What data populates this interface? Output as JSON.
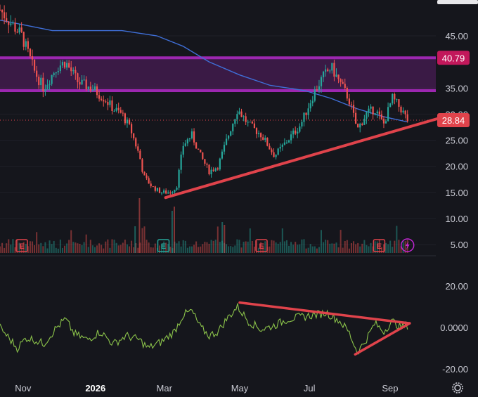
{
  "chart_data": [
    {
      "type": "candlestick",
      "panel": "price",
      "y_axis_ticks": [
        "45.00",
        "35.00",
        "30.00",
        "25.00",
        "20.00",
        "15.00",
        "10.00",
        "5.00"
      ],
      "y_tick_values": [
        45,
        35,
        30,
        25,
        20,
        15,
        10,
        5
      ],
      "ylim": [
        3.0,
        52.0
      ],
      "x_axis_labels": [
        "Nov",
        "2026",
        "Mar",
        "May",
        "Jul",
        "Sep"
      ],
      "price_tags": [
        {
          "label": "40.79",
          "value": 40.79,
          "color": "#c2185b"
        },
        {
          "label": "28.84",
          "value": 28.84,
          "color": "#e0434b"
        }
      ],
      "resistance_zone": {
        "low": 34.5,
        "high": 40.79,
        "color": "#9c27b0"
      },
      "current_price_line": 28.84,
      "close_path": [
        {
          "t": 0.0,
          "p": 50
        },
        {
          "t": 0.05,
          "p": 45
        },
        {
          "t": 0.08,
          "p": 38
        },
        {
          "t": 0.1,
          "p": 35
        },
        {
          "t": 0.13,
          "p": 39
        },
        {
          "t": 0.15,
          "p": 40
        },
        {
          "t": 0.18,
          "p": 36
        },
        {
          "t": 0.21,
          "p": 35
        },
        {
          "t": 0.24,
          "p": 33
        },
        {
          "t": 0.26,
          "p": 31
        },
        {
          "t": 0.28,
          "p": 30
        },
        {
          "t": 0.3,
          "p": 27
        },
        {
          "t": 0.32,
          "p": 22
        },
        {
          "t": 0.33,
          "p": 18
        },
        {
          "t": 0.35,
          "p": 16
        },
        {
          "t": 0.37,
          "p": 15
        },
        {
          "t": 0.39,
          "p": 15
        },
        {
          "t": 0.405,
          "p": 16
        },
        {
          "t": 0.42,
          "p": 24
        },
        {
          "t": 0.44,
          "p": 26
        },
        {
          "t": 0.46,
          "p": 22
        },
        {
          "t": 0.48,
          "p": 19
        },
        {
          "t": 0.5,
          "p": 20
        },
        {
          "t": 0.52,
          "p": 25
        },
        {
          "t": 0.545,
          "p": 31
        },
        {
          "t": 0.57,
          "p": 28
        },
        {
          "t": 0.6,
          "p": 26
        },
        {
          "t": 0.63,
          "p": 22
        },
        {
          "t": 0.66,
          "p": 25
        },
        {
          "t": 0.69,
          "p": 28
        },
        {
          "t": 0.72,
          "p": 34
        },
        {
          "t": 0.74,
          "p": 37
        },
        {
          "t": 0.76,
          "p": 39
        },
        {
          "t": 0.78,
          "p": 36
        },
        {
          "t": 0.8,
          "p": 33
        },
        {
          "t": 0.82,
          "p": 27
        },
        {
          "t": 0.84,
          "p": 30
        },
        {
          "t": 0.86,
          "p": 31
        },
        {
          "t": 0.88,
          "p": 28
        },
        {
          "t": 0.9,
          "p": 33
        },
        {
          "t": 0.92,
          "p": 31
        },
        {
          "t": 0.935,
          "p": 28.84
        }
      ],
      "moving_average": [
        {
          "t": 0.0,
          "p": 48
        },
        {
          "t": 0.06,
          "p": 47
        },
        {
          "t": 0.12,
          "p": 46
        },
        {
          "t": 0.2,
          "p": 46
        },
        {
          "t": 0.28,
          "p": 46
        },
        {
          "t": 0.36,
          "p": 45
        },
        {
          "t": 0.42,
          "p": 43
        },
        {
          "t": 0.48,
          "p": 40
        },
        {
          "t": 0.55,
          "p": 37.5
        },
        {
          "t": 0.62,
          "p": 35.5
        },
        {
          "t": 0.7,
          "p": 34.5
        },
        {
          "t": 0.76,
          "p": 33
        },
        {
          "t": 0.82,
          "p": 31
        },
        {
          "t": 0.88,
          "p": 29.5
        },
        {
          "t": 0.935,
          "p": 28.5
        }
      ],
      "trendline": [
        {
          "t": 0.38,
          "p": 14
        },
        {
          "t": 1.04,
          "p": 30
        }
      ],
      "earnings_markers": [
        {
          "t": 0.05,
          "label": "E",
          "color": "#e0434b"
        },
        {
          "t": 0.375,
          "label": "E",
          "color": "#26a69a"
        },
        {
          "t": 0.6,
          "label": "E",
          "color": "#e0434b"
        },
        {
          "t": 0.87,
          "label": "E",
          "color": "#e0434b"
        }
      ],
      "dividend_marker": {
        "t": 0.935,
        "icon": "lightning-icon",
        "color": "#c026d3"
      }
    },
    {
      "type": "line",
      "panel": "oscillator",
      "y_axis_ticks": [
        "20.00",
        "0.0000",
        "-20.00"
      ],
      "y_tick_values": [
        20,
        0,
        -20
      ],
      "ylim": [
        -25,
        25
      ],
      "color": "#8bc34a",
      "values": [
        {
          "t": 0.0,
          "v": 0
        },
        {
          "t": 0.02,
          "v": -5
        },
        {
          "t": 0.04,
          "v": -10
        },
        {
          "t": 0.06,
          "v": -5
        },
        {
          "t": 0.08,
          "v": -6
        },
        {
          "t": 0.1,
          "v": -8
        },
        {
          "t": 0.13,
          "v": 0
        },
        {
          "t": 0.15,
          "v": 4
        },
        {
          "t": 0.17,
          "v": -3
        },
        {
          "t": 0.2,
          "v": -6
        },
        {
          "t": 0.23,
          "v": -2
        },
        {
          "t": 0.26,
          "v": -8
        },
        {
          "t": 0.29,
          "v": -4
        },
        {
          "t": 0.32,
          "v": -6
        },
        {
          "t": 0.34,
          "v": -10
        },
        {
          "t": 0.37,
          "v": -7
        },
        {
          "t": 0.4,
          "v": -2
        },
        {
          "t": 0.42,
          "v": 6
        },
        {
          "t": 0.44,
          "v": 8
        },
        {
          "t": 0.46,
          "v": 0
        },
        {
          "t": 0.48,
          "v": -4
        },
        {
          "t": 0.5,
          "v": -2
        },
        {
          "t": 0.52,
          "v": 4
        },
        {
          "t": 0.545,
          "v": 10
        },
        {
          "t": 0.57,
          "v": 3
        },
        {
          "t": 0.6,
          "v": -1
        },
        {
          "t": 0.63,
          "v": 1
        },
        {
          "t": 0.66,
          "v": 4
        },
        {
          "t": 0.69,
          "v": 5
        },
        {
          "t": 0.72,
          "v": 6
        },
        {
          "t": 0.75,
          "v": 7
        },
        {
          "t": 0.78,
          "v": 3
        },
        {
          "t": 0.8,
          "v": -2
        },
        {
          "t": 0.82,
          "v": -12
        },
        {
          "t": 0.84,
          "v": -6
        },
        {
          "t": 0.86,
          "v": 2
        },
        {
          "t": 0.88,
          "v": -2
        },
        {
          "t": 0.9,
          "v": 3
        },
        {
          "t": 0.92,
          "v": 0
        },
        {
          "t": 0.935,
          "v": 1
        }
      ],
      "upper_trendline": [
        {
          "t": 0.55,
          "v": 12
        },
        {
          "t": 0.94,
          "v": 2
        }
      ],
      "lower_trendline": [
        {
          "t": 0.815,
          "v": -13
        },
        {
          "t": 0.94,
          "v": 2
        }
      ]
    }
  ],
  "ui": {
    "settings_icon": "gear-icon"
  }
}
